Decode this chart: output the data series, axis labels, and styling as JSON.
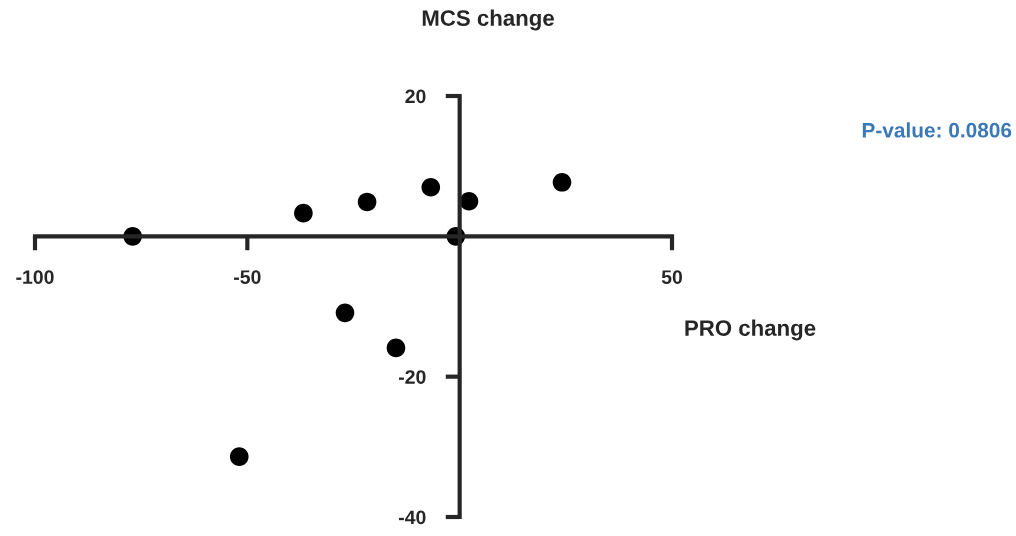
{
  "chart_data": {
    "type": "scatter",
    "xlabel": "PRO change",
    "ylabel": "MCS change",
    "annotations": [
      "P-value: 0.0806"
    ],
    "x": [
      -77,
      -36.8,
      -21.8,
      -6.8,
      2.2,
      -0.9,
      24.1,
      -27.0,
      -15.0,
      -51.9
    ],
    "series": [
      {
        "color": "#000000",
        "values": [
          0,
          3.3,
          4.9,
          7.0,
          5.0,
          0,
          7.7,
          -10.9,
          -15.9,
          -31.4
        ]
      }
    ],
    "xlim": [
      -100,
      50
    ],
    "ylim": [
      -40,
      20
    ],
    "xticks": [
      -100,
      -50,
      50
    ],
    "yticks": [
      -40,
      -20,
      20
    ],
    "marker": "circle",
    "grid": false,
    "legend": false
  }
}
